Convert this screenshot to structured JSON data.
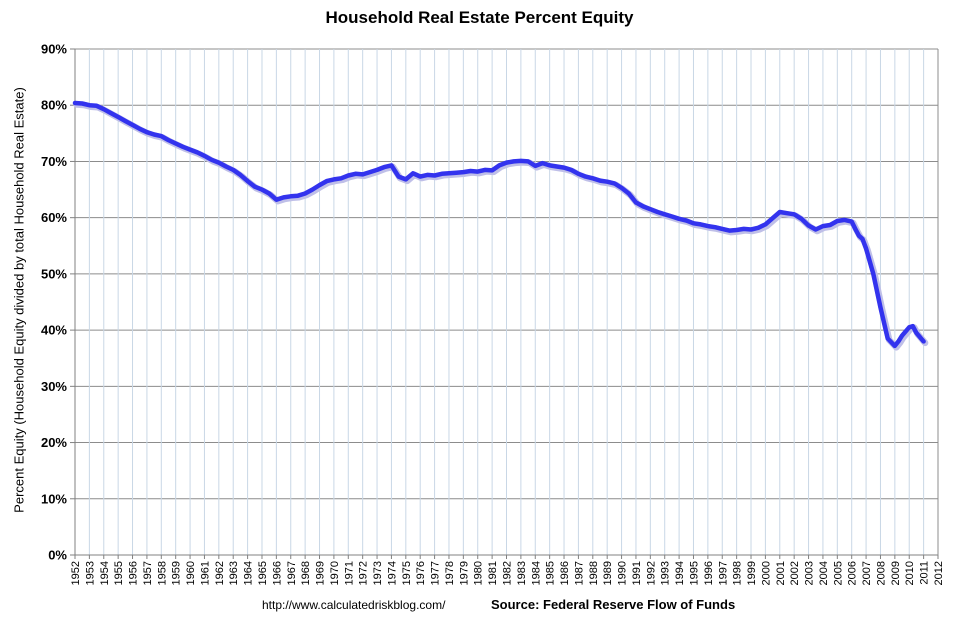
{
  "chart_data": {
    "type": "line",
    "title": "Household Real Estate Percent Equity",
    "ylabel": "Percent Equity (Household Equity divided by total Household Real Estate)",
    "xlabel": "",
    "xlim": [
      1952,
      2012
    ],
    "ylim": [
      0,
      90
    ],
    "y_ticks": [
      "0%",
      "10%",
      "20%",
      "30%",
      "40%",
      "50%",
      "60%",
      "70%",
      "80%",
      "90%"
    ],
    "x_tick_labels": [
      "1952",
      "1953",
      "1954",
      "1955",
      "1956",
      "1957",
      "1958",
      "1959",
      "1960",
      "1961",
      "1962",
      "1963",
      "1964",
      "1965",
      "1966",
      "1967",
      "1968",
      "1969",
      "1970",
      "1971",
      "1972",
      "1973",
      "1974",
      "1975",
      "1976",
      "1977",
      "1978",
      "1979",
      "1980",
      "1981",
      "1982",
      "1983",
      "1984",
      "1985",
      "1986",
      "1987",
      "1988",
      "1989",
      "1990",
      "1991",
      "1992",
      "1993",
      "1994",
      "1995",
      "1996",
      "1997",
      "1998",
      "1999",
      "2000",
      "2001",
      "2002",
      "2003",
      "2004",
      "2005",
      "2006",
      "2007",
      "2008",
      "2009",
      "2010",
      "2011",
      "2012"
    ],
    "grid": true,
    "series": [
      {
        "name": "Percent Equity",
        "color": "#3333ee",
        "x": [
          1952.0,
          1952.5,
          1953.0,
          1953.5,
          1954.0,
          1954.5,
          1955.0,
          1955.5,
          1956.0,
          1956.5,
          1957.0,
          1957.5,
          1958.0,
          1958.5,
          1959.0,
          1959.5,
          1960.0,
          1960.5,
          1961.0,
          1961.5,
          1962.0,
          1962.5,
          1963.0,
          1963.5,
          1964.0,
          1964.5,
          1965.0,
          1965.5,
          1966.0,
          1966.5,
          1967.0,
          1967.5,
          1968.0,
          1968.5,
          1969.0,
          1969.5,
          1970.0,
          1970.5,
          1971.0,
          1971.5,
          1972.0,
          1972.5,
          1973.0,
          1973.5,
          1974.0,
          1974.5,
          1975.0,
          1975.5,
          1976.0,
          1976.5,
          1977.0,
          1977.5,
          1978.0,
          1978.5,
          1979.0,
          1979.5,
          1980.0,
          1980.5,
          1981.0,
          1981.5,
          1982.0,
          1982.5,
          1983.0,
          1983.5,
          1984.0,
          1984.5,
          1985.0,
          1985.5,
          1986.0,
          1986.5,
          1987.0,
          1987.5,
          1988.0,
          1988.5,
          1989.0,
          1989.5,
          1990.0,
          1990.5,
          1991.0,
          1991.5,
          1992.0,
          1992.5,
          1993.0,
          1993.5,
          1994.0,
          1994.5,
          1995.0,
          1995.5,
          1996.0,
          1996.5,
          1997.0,
          1997.5,
          1998.0,
          1998.5,
          1999.0,
          1999.5,
          2000.0,
          2000.5,
          2001.0,
          2001.5,
          2002.0,
          2002.5,
          2003.0,
          2003.5,
          2004.0,
          2004.5,
          2005.0,
          2005.5,
          2006.0,
          2006.25,
          2006.5,
          2006.75,
          2007.0,
          2007.5,
          2008.0,
          2008.5,
          2009.0,
          2009.25,
          2009.5,
          2010.0,
          2010.25,
          2010.5,
          2011.0
        ],
        "values": [
          80.4,
          80.3,
          80.0,
          79.9,
          79.3,
          78.6,
          77.9,
          77.2,
          76.5,
          75.8,
          75.2,
          74.8,
          74.5,
          73.8,
          73.2,
          72.6,
          72.1,
          71.6,
          71.0,
          70.3,
          69.8,
          69.1,
          68.5,
          67.6,
          66.5,
          65.5,
          65.0,
          64.3,
          63.2,
          63.6,
          63.8,
          63.9,
          64.3,
          65.0,
          65.8,
          66.5,
          66.8,
          67.0,
          67.5,
          67.8,
          67.7,
          68.1,
          68.5,
          69.0,
          69.3,
          67.3,
          66.8,
          67.9,
          67.3,
          67.6,
          67.5,
          67.8,
          67.9,
          68.0,
          68.1,
          68.3,
          68.2,
          68.5,
          68.4,
          69.3,
          69.8,
          70.0,
          70.1,
          70.0,
          69.2,
          69.7,
          69.3,
          69.1,
          68.9,
          68.5,
          67.8,
          67.3,
          67.0,
          66.6,
          66.4,
          66.1,
          65.3,
          64.3,
          62.7,
          62.0,
          61.5,
          61.0,
          60.6,
          60.2,
          59.8,
          59.5,
          59.0,
          58.8,
          58.5,
          58.3,
          58.0,
          57.7,
          57.8,
          58.0,
          57.9,
          58.2,
          58.8,
          59.9,
          61.0,
          60.8,
          60.6,
          59.8,
          58.6,
          57.9,
          58.5,
          58.7,
          59.4,
          59.6,
          59.3,
          58.0,
          56.8,
          56.2,
          54.5,
          50.0,
          44.0,
          38.5,
          37.2,
          38.0,
          39.0,
          40.5,
          40.7,
          39.5,
          38.0
        ]
      }
    ]
  },
  "footer": {
    "url": "http://www.calculatedriskblog.com/",
    "source": "Source: Federal Reserve Flow of Funds"
  }
}
